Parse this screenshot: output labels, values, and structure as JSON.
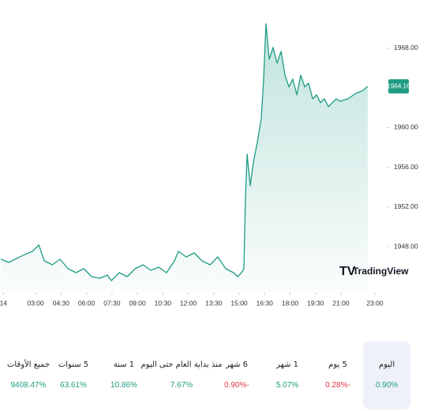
{
  "chart_data": {
    "type": "area",
    "x": [
      0.95,
      1.42,
      1.88,
      2.35,
      2.81,
      3.19,
      3.51,
      3.98,
      4.44,
      4.91,
      5.37,
      5.84,
      6.3,
      6.77,
      7.23,
      7.47,
      7.93,
      8.4,
      8.86,
      9.33,
      9.79,
      10.26,
      10.72,
      11.19,
      11.42,
      11.88,
      12.35,
      12.81,
      13.28,
      13.74,
      14.21,
      14.67,
      14.91,
      15.14,
      15.28,
      15.37,
      15.47,
      15.65,
      15.84,
      16.07,
      16.3,
      16.44,
      16.58,
      16.77,
      17.0,
      17.23,
      17.47,
      17.7,
      17.93,
      18.16,
      18.4,
      18.63,
      18.86,
      19.09,
      19.33,
      19.56,
      19.79,
      20.02,
      20.26,
      20.49,
      20.72,
      20.95,
      21.42,
      21.88,
      22.26,
      22.58
    ],
    "series": [
      {
        "color": "#1e9c83",
        "values": [
          1946.73,
          1946.41,
          1946.8,
          1947.2,
          1947.52,
          1948.16,
          1946.57,
          1946.17,
          1946.73,
          1945.77,
          1945.37,
          1945.77,
          1944.97,
          1944.81,
          1945.13,
          1944.57,
          1945.37,
          1944.97,
          1945.77,
          1946.17,
          1945.61,
          1945.93,
          1945.37,
          1946.57,
          1947.52,
          1946.96,
          1947.36,
          1946.57,
          1946.17,
          1946.96,
          1945.77,
          1945.37,
          1944.97,
          1945.37,
          1945.77,
          1952.94,
          1957.32,
          1954.14,
          1956.53,
          1958.52,
          1960.91,
          1964.89,
          1970.47,
          1966.88,
          1968.08,
          1966.49,
          1967.68,
          1965.29,
          1964.1,
          1964.89,
          1963.3,
          1965.29,
          1964.1,
          1964.49,
          1962.9,
          1963.3,
          1962.5,
          1962.9,
          1962.1,
          1962.5,
          1962.9,
          1962.66,
          1962.9,
          1963.46,
          1963.7,
          1964.16
        ]
      }
    ],
    "xlim": [
      0.9,
      23.7
    ],
    "xticks": [
      {
        "value": 1.1,
        "label": "14"
      },
      {
        "value": 3,
        "label": "03:00"
      },
      {
        "value": 4.5,
        "label": "04:30"
      },
      {
        "value": 6,
        "label": "06:00"
      },
      {
        "value": 7.5,
        "label": "07:30"
      },
      {
        "value": 9,
        "label": "09:00"
      },
      {
        "value": 10.5,
        "label": "10:30"
      },
      {
        "value": 12,
        "label": "12:00"
      },
      {
        "value": 13.5,
        "label": "13:30"
      },
      {
        "value": 15,
        "label": "15:00"
      },
      {
        "value": 16.5,
        "label": "16:30"
      },
      {
        "value": 18,
        "label": "18:00"
      },
      {
        "value": 19.5,
        "label": "19:30"
      },
      {
        "value": 21,
        "label": "21:00"
      },
      {
        "value": 23,
        "label": "23:00"
      }
    ],
    "ylim": [
      1943.38,
      1972.86
    ],
    "yticks": [
      {
        "value": 1948,
        "label": "1948.00"
      },
      {
        "value": 1952,
        "label": "1952.00"
      },
      {
        "value": 1956,
        "label": "1956.00"
      },
      {
        "value": 1960,
        "label": "1960.00"
      },
      {
        "value": 1968,
        "label": "1968.00"
      }
    ],
    "watermark": "TradingView"
  },
  "periods": [
    {
      "label": "اليوم",
      "change": "0.90%",
      "color": "#1e9c83"
    },
    {
      "label": "5 يوم",
      "change": "0.28%-",
      "color": "#e0364a"
    },
    {
      "label": "1 شهر",
      "change": "5.07%",
      "color": "#1e9c83"
    },
    {
      "label": "6 شهر",
      "change": "0.90%-",
      "color": "#e0364a"
    },
    {
      "label": "منذ بداية العام حتى اليوم",
      "change": "7.67%",
      "color": "#1e9c83"
    },
    {
      "label": "1 سنة",
      "change": "10.86%",
      "color": "#1e9c83"
    },
    {
      "label": "5 سنوات",
      "change": "63.61%",
      "color": "#1e9c83"
    },
    {
      "label": "جميع الأوقات",
      "change": "9408.47%",
      "color": "#1e9c83"
    }
  ],
  "selected_period": 0
}
